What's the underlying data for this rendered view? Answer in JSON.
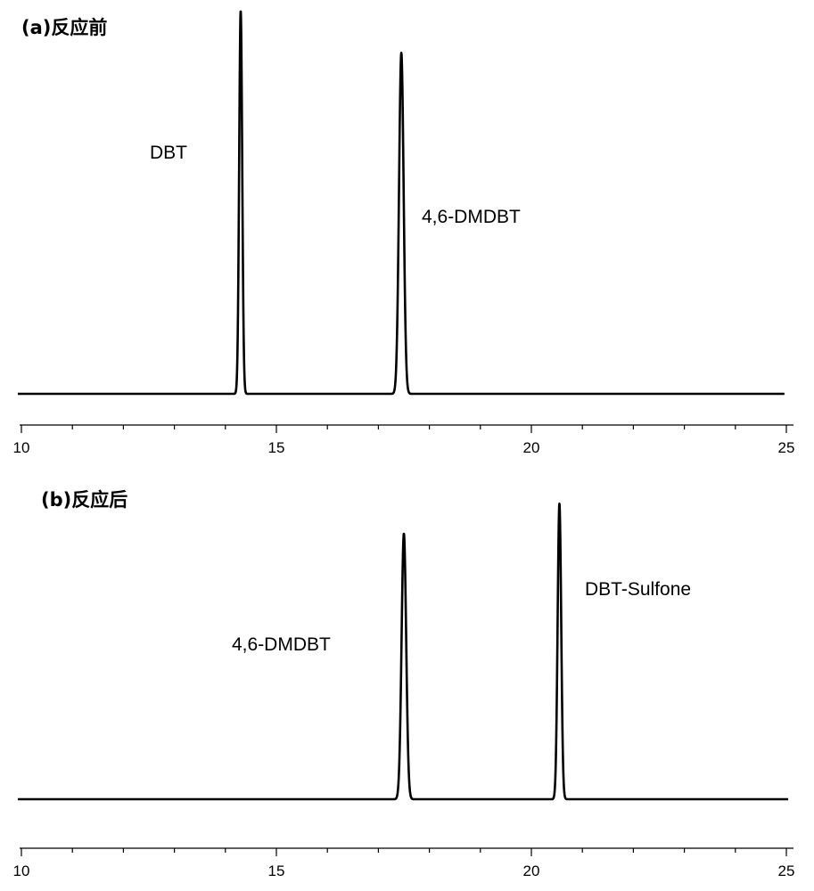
{
  "chart_data": [
    {
      "type": "line",
      "title": "(a)反应前",
      "xlabel": "",
      "ylabel": "",
      "xlim": [
        10,
        25
      ],
      "xticks": [
        "10",
        "15",
        "20",
        "25"
      ],
      "ylim": [
        0,
        1.0
      ],
      "grid": false,
      "series": [
        {
          "peaks": [
            {
              "x": 14.3,
              "height": 1.0,
              "width": 0.03
            },
            {
              "x": 17.45,
              "height": 0.89,
              "width": 0.045
            }
          ]
        }
      ],
      "annotations": [
        {
          "text": "DBT",
          "peak_index": 0
        },
        {
          "text": "4,6-DMDBT",
          "peak_index": 1
        }
      ]
    },
    {
      "type": "line",
      "title": "(b)反应后",
      "xlabel": "",
      "ylabel": "",
      "xlim": [
        10,
        25
      ],
      "xticks": [
        "10",
        "15",
        "20",
        "25"
      ],
      "ylim": [
        0,
        1.0
      ],
      "grid": false,
      "series": [
        {
          "peaks": [
            {
              "x": 17.5,
              "height": 0.89,
              "width": 0.045
            },
            {
              "x": 20.55,
              "height": 0.99,
              "width": 0.035
            }
          ]
        }
      ],
      "annotations": [
        {
          "text": "4,6-DMDBT",
          "peak_index": 0
        },
        {
          "text": "DBT-Sulfone",
          "peak_index": 1
        }
      ]
    }
  ]
}
